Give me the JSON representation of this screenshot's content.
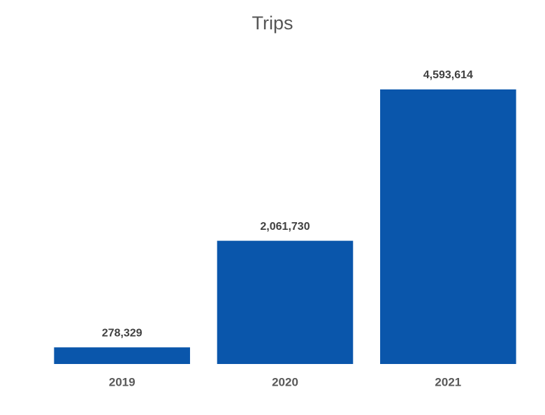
{
  "chart_data": {
    "type": "bar",
    "title": "Trips",
    "categories": [
      "2019",
      "2020",
      "2021"
    ],
    "values": [
      278329,
      2061730,
      4593614
    ],
    "value_labels": [
      "278,329",
      "2,061,730",
      "4,593,614"
    ],
    "color": "#0a56ab"
  }
}
